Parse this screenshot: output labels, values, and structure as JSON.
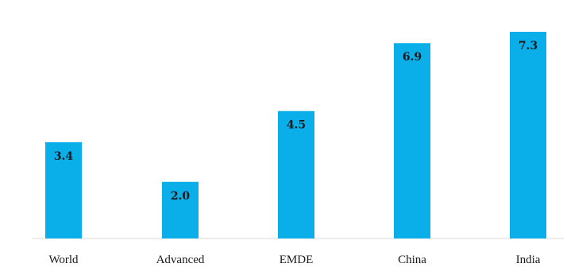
{
  "chart_data": {
    "type": "bar",
    "title": "",
    "xlabel": "",
    "ylabel": "",
    "categories": [
      "World",
      "Advanced",
      "EMDE",
      "China",
      "India"
    ],
    "values": [
      3.4,
      2.0,
      4.5,
      6.9,
      7.3
    ],
    "data_labels": [
      "3.4",
      "2.0",
      "4.5",
      "6.9",
      "7.3"
    ],
    "ylim": [
      0,
      7.3
    ],
    "grid": false,
    "legend": "none",
    "bar_color": "#0aaee8"
  }
}
